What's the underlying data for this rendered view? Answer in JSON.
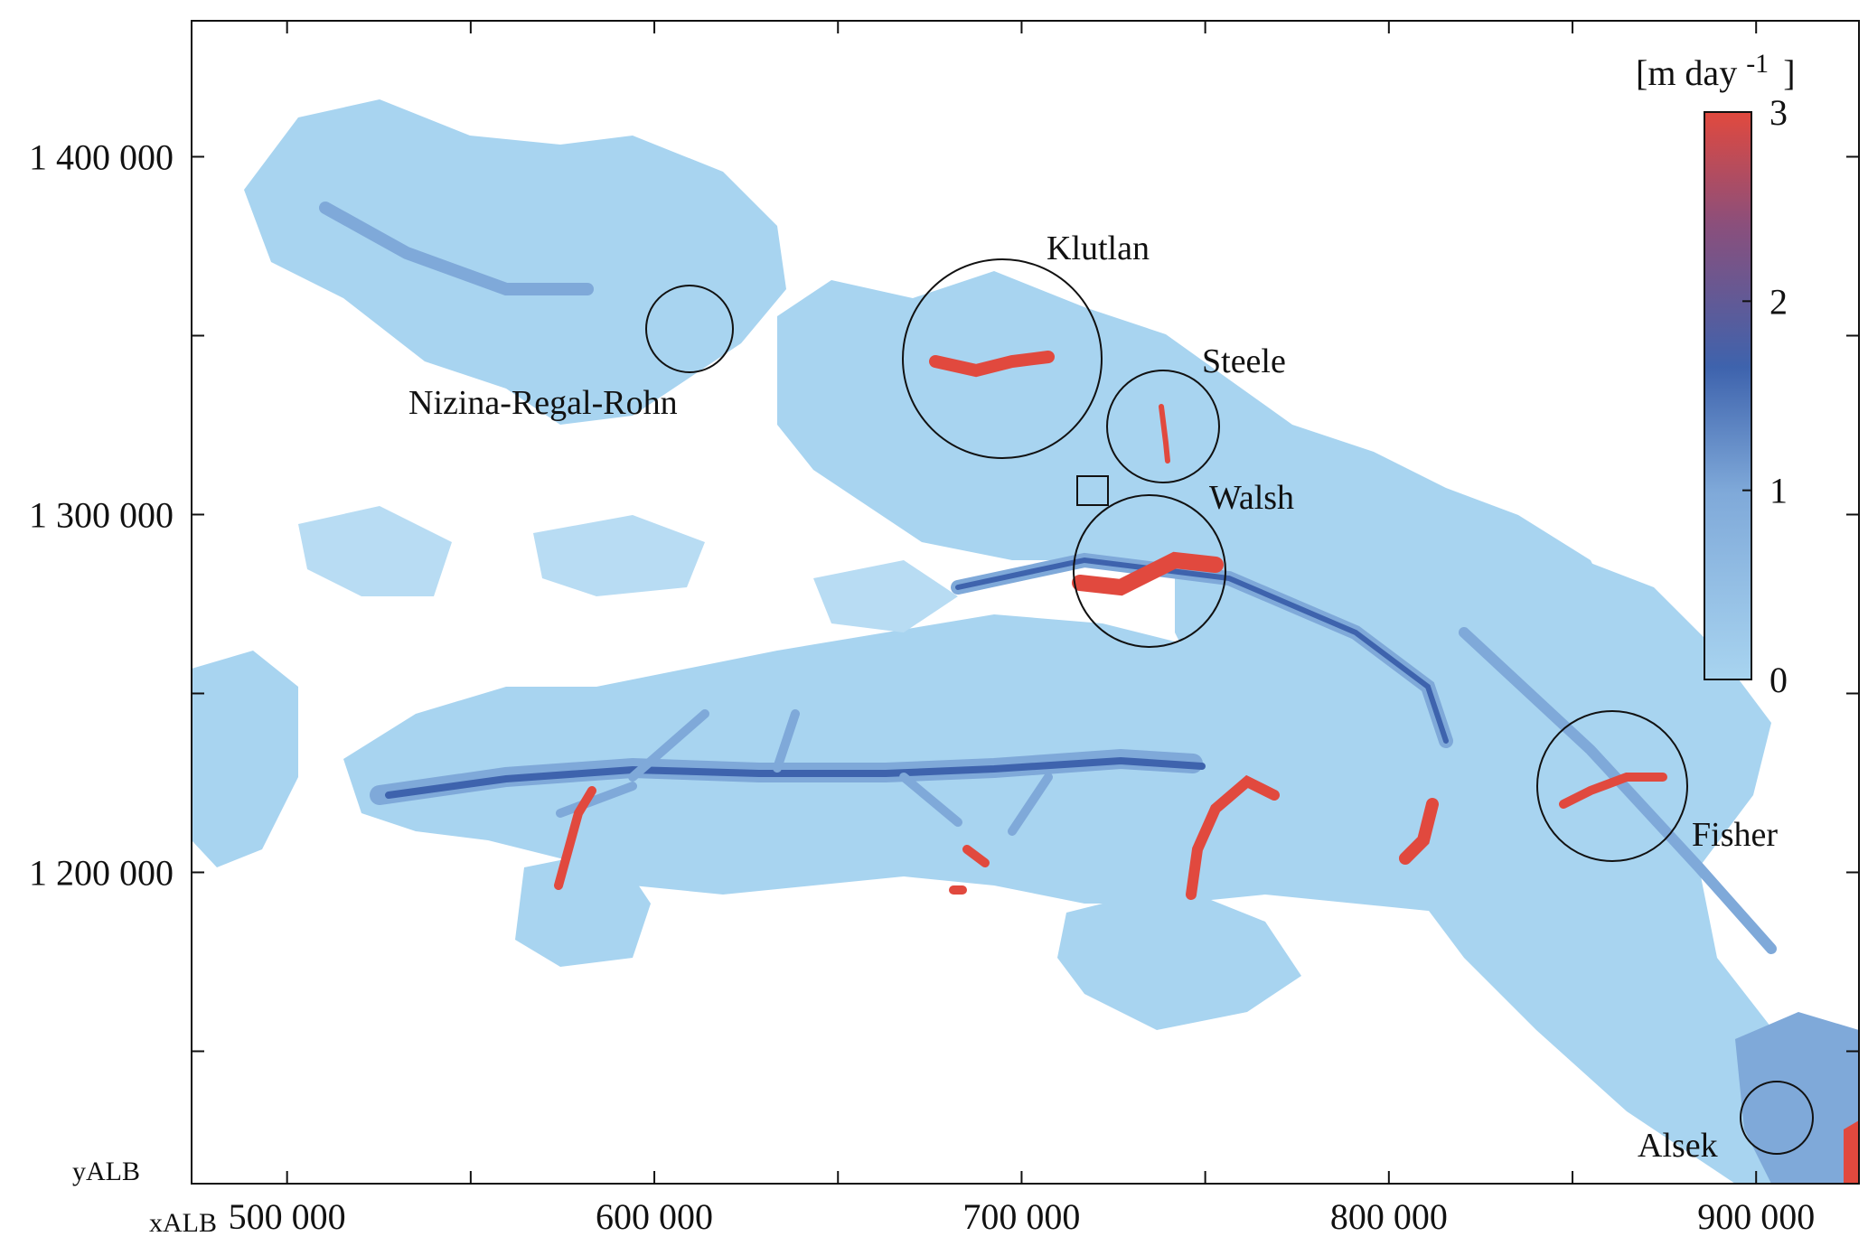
{
  "axes": {
    "x_axis_name": "xALB",
    "y_axis_name": "yALB",
    "x_ticks": [
      {
        "value": 500000,
        "label": "500 000"
      },
      {
        "value": 600000,
        "label": "600 000"
      },
      {
        "value": 700000,
        "label": "700 000"
      },
      {
        "value": 800000,
        "label": "800 000"
      },
      {
        "value": 900000,
        "label": "900 000"
      }
    ],
    "y_ticks": [
      {
        "value": 1400000,
        "label": "1 400 000"
      },
      {
        "value": 1300000,
        "label": "1 300 000"
      },
      {
        "value": 1200000,
        "label": "1 200 000"
      }
    ],
    "x_range": [
      474000,
      928000
    ],
    "y_range": [
      1113000,
      1438000
    ]
  },
  "colorbar": {
    "unit": "[m  day",
    "unit_exponent": "-1",
    "unit_close": "]",
    "min": 0,
    "max": 3,
    "tick_labels": [
      "0",
      "1",
      "2",
      "3"
    ],
    "colors": [
      "#a8d4f0",
      "#7fa9d9",
      "#3e63ad",
      "#e1493e"
    ]
  },
  "glaciers": [
    {
      "name": "Nizina-Regal-Rohn"
    },
    {
      "name": "Klutlan"
    },
    {
      "name": "Steele"
    },
    {
      "name": "Walsh"
    },
    {
      "name": "Fisher"
    },
    {
      "name": "Alsek"
    }
  ],
  "colors": {
    "ice_light": "#a8d4f0",
    "ice_mid": "#7fa9d9",
    "ice_dark": "#3e63ad",
    "fast_flow": "#e1493e"
  }
}
